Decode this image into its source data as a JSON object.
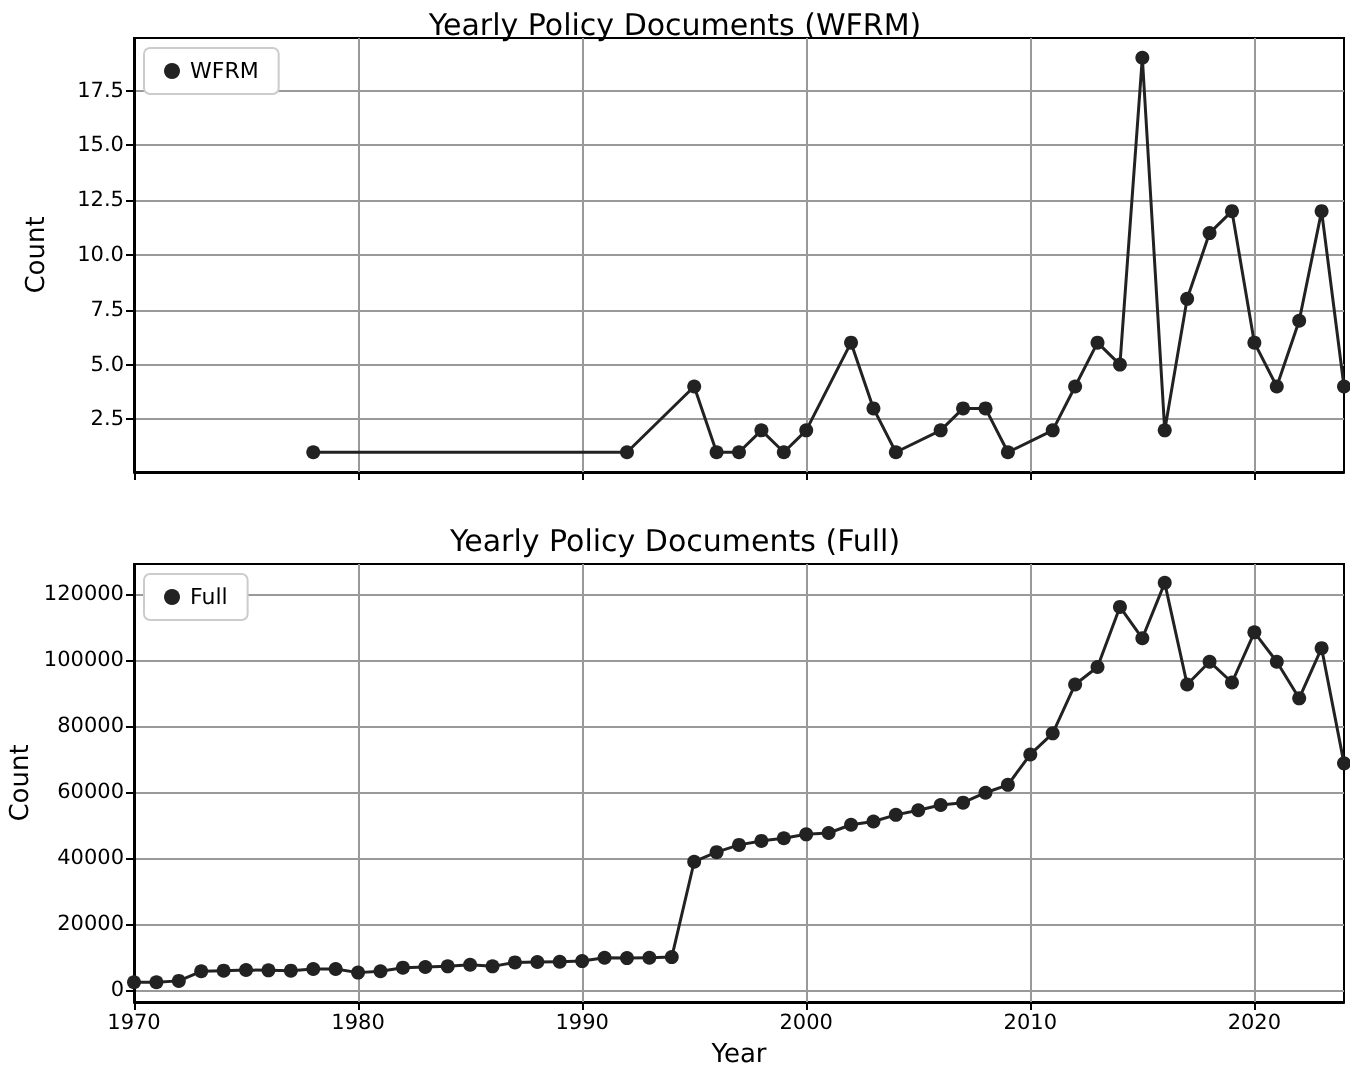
{
  "chart_data": [
    {
      "type": "line",
      "title": "Yearly Policy Documents (WFRM)",
      "ylabel": "Count",
      "series": [
        {
          "name": "WFRM",
          "color": "#222222",
          "x": [
            1978,
            1992,
            1995,
            1996,
            1997,
            1998,
            1999,
            2000,
            2002,
            2003,
            2004,
            2006,
            2007,
            2008,
            2009,
            2011,
            2012,
            2013,
            2014,
            2015,
            2016,
            2017,
            2018,
            2019,
            2020,
            2021,
            2022,
            2023,
            2024
          ],
          "values": [
            1,
            1,
            4,
            1,
            1,
            2,
            1,
            2,
            6,
            3,
            1,
            2,
            3,
            3,
            1,
            2,
            4,
            6,
            5,
            19,
            2,
            8,
            11,
            12,
            6,
            4,
            7,
            12,
            4
          ]
        }
      ],
      "xlim": [
        1970,
        2024
      ],
      "xticks": [
        1970,
        1980,
        1990,
        2000,
        2010,
        2020
      ],
      "ylim": [
        0.1,
        19.9
      ],
      "yticks": [
        2.5,
        {
          "value": 5,
          "label": "5.0"
        },
        7.5,
        {
          "value": 10,
          "label": "10.0"
        },
        12.5,
        {
          "value": 15,
          "label": "15.0"
        },
        17.5
      ],
      "tick_labels": "y",
      "grid": true,
      "legend": "top left",
      "marker": "circle",
      "line_style": "solid"
    },
    {
      "type": "line",
      "title": "Yearly Policy Documents (Full)",
      "xlabel": "Year",
      "ylabel": "Count",
      "series": [
        {
          "name": "Full",
          "color": "#222222",
          "x": [
            1970,
            1971,
            1972,
            1973,
            1974,
            1975,
            1976,
            1977,
            1978,
            1979,
            1980,
            1981,
            1982,
            1983,
            1984,
            1985,
            1986,
            1987,
            1988,
            1989,
            1990,
            1991,
            1992,
            1993,
            1994,
            1995,
            1996,
            1997,
            1998,
            1999,
            2000,
            2001,
            2002,
            2003,
            2004,
            2005,
            2006,
            2007,
            2008,
            2009,
            2010,
            2011,
            2012,
            2013,
            2014,
            2015,
            2016,
            2017,
            2018,
            2019,
            2020,
            2021,
            2022,
            2023,
            2024
          ],
          "values": [
            2400,
            2400,
            2800,
            5700,
            5900,
            6100,
            6000,
            5900,
            6400,
            6400,
            5300,
            5700,
            6800,
            7000,
            7200,
            7700,
            7200,
            8400,
            8500,
            8600,
            8800,
            9800,
            9700,
            9800,
            10000,
            38900,
            41800,
            44000,
            45200,
            46000,
            47200,
            47600,
            50100,
            51100,
            53100,
            54500,
            56100,
            56800,
            59800,
            62200,
            71400,
            77800,
            92600,
            97900,
            116100,
            106600,
            123400,
            92600,
            99500,
            93200,
            108400,
            99500,
            88400,
            103600,
            68700
          ]
        }
      ],
      "xlim": [
        1970,
        2024
      ],
      "xticks": [
        1970,
        1980,
        1990,
        2000,
        2010,
        2020
      ],
      "ylim": [
        -3600,
        129100
      ],
      "yticks": [
        0,
        20000,
        40000,
        60000,
        80000,
        100000,
        120000
      ],
      "grid": true,
      "legend": "top left",
      "marker": "circle",
      "line_style": "solid"
    }
  ]
}
